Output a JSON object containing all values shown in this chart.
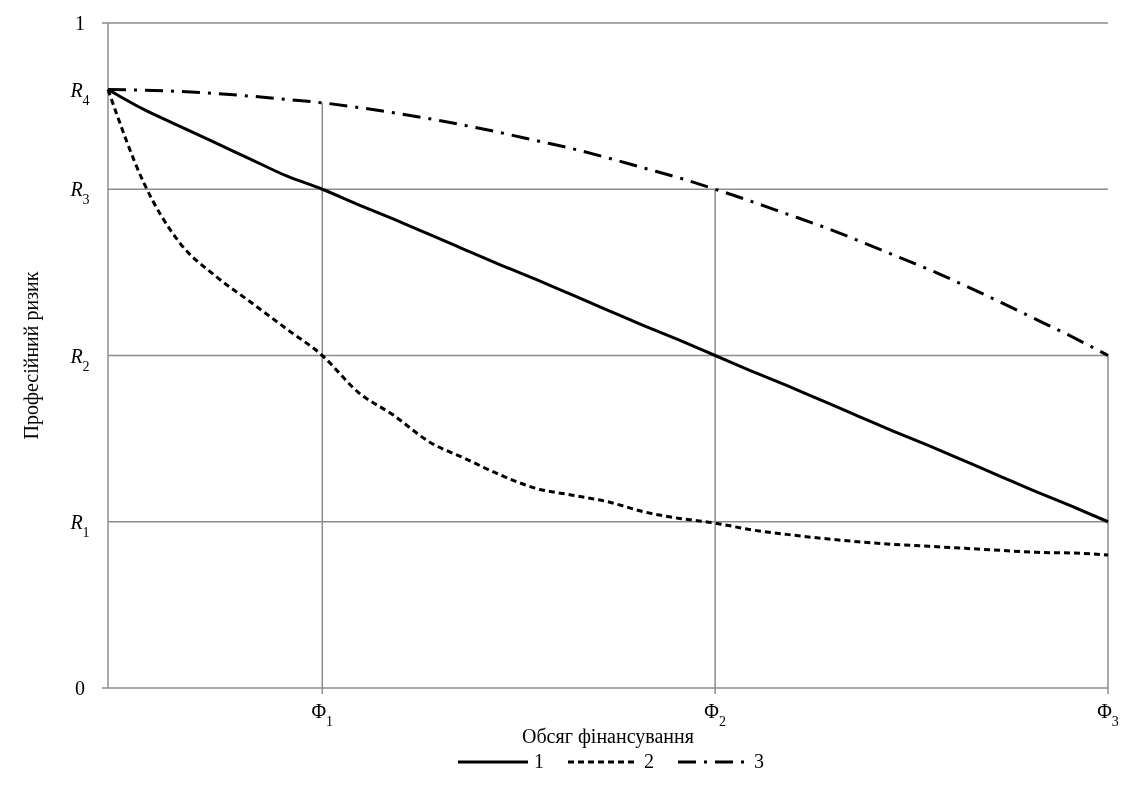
{
  "chart_data": {
    "type": "line",
    "xlabel": "Обсяг фінансування",
    "ylabel": "Професійний ризик",
    "categories": [
      null,
      null,
      null,
      null,
      null,
      null,
      "Φ$_{1}$",
      null,
      null,
      null,
      null,
      null,
      null,
      null,
      null,
      null,
      null,
      "Φ$_{2}$",
      null,
      null,
      null,
      null,
      null,
      null,
      null,
      null,
      null,
      null,
      "Φ$_{3}$"
    ],
    "ylim": [
      0,
      1
    ],
    "yticks": [
      0,
      1
    ],
    "grid": "x",
    "ref_lines": [
      {
        "axis": "y",
        "value": 0.25,
        "label": "R$_{1}$"
      },
      {
        "axis": "y",
        "value": 0.5,
        "label": "R$_{2}$"
      },
      {
        "axis": "y",
        "value": 0.75,
        "label": "R$_{3}$"
      }
    ],
    "annotations": [
      "R$_{4}$"
    ],
    "legend": "bottom",
    "series": [
      {
        "name": "1",
        "color": "#000000",
        "line_style": "solid",
        "values": [
          0.9,
          0.87,
          0.845,
          0.82,
          0.795,
          0.77,
          0.75,
          0.727,
          0.705,
          0.682,
          0.659,
          0.636,
          0.614,
          0.591,
          0.568,
          0.545,
          0.523,
          0.5,
          0.477,
          0.455,
          0.432,
          0.409,
          0.386,
          0.364,
          0.341,
          0.318,
          0.295,
          0.273,
          0.25
        ]
      },
      {
        "name": "2",
        "color": "#000000",
        "line_style": "dashed",
        "values": [
          0.9,
          0.76,
          0.67,
          0.62,
          0.58,
          0.54,
          0.5,
          0.445,
          0.41,
          0.37,
          0.345,
          0.32,
          0.3,
          0.29,
          0.28,
          0.265,
          0.255,
          0.248,
          0.238,
          0.231,
          0.225,
          0.22,
          0.216,
          0.213,
          0.21,
          0.207,
          0.204,
          0.203,
          0.2
        ]
      },
      {
        "name": "3",
        "color": "#000000",
        "line_style": "dashdot",
        "values": [
          0.9,
          0.899,
          0.897,
          0.894,
          0.89,
          0.885,
          0.88,
          0.873,
          0.865,
          0.856,
          0.846,
          0.835,
          0.823,
          0.811,
          0.797,
          0.782,
          0.767,
          0.75,
          0.732,
          0.713,
          0.694,
          0.673,
          0.651,
          0.629,
          0.605,
          0.58,
          0.554,
          0.528,
          0.5
        ]
      }
    ]
  }
}
